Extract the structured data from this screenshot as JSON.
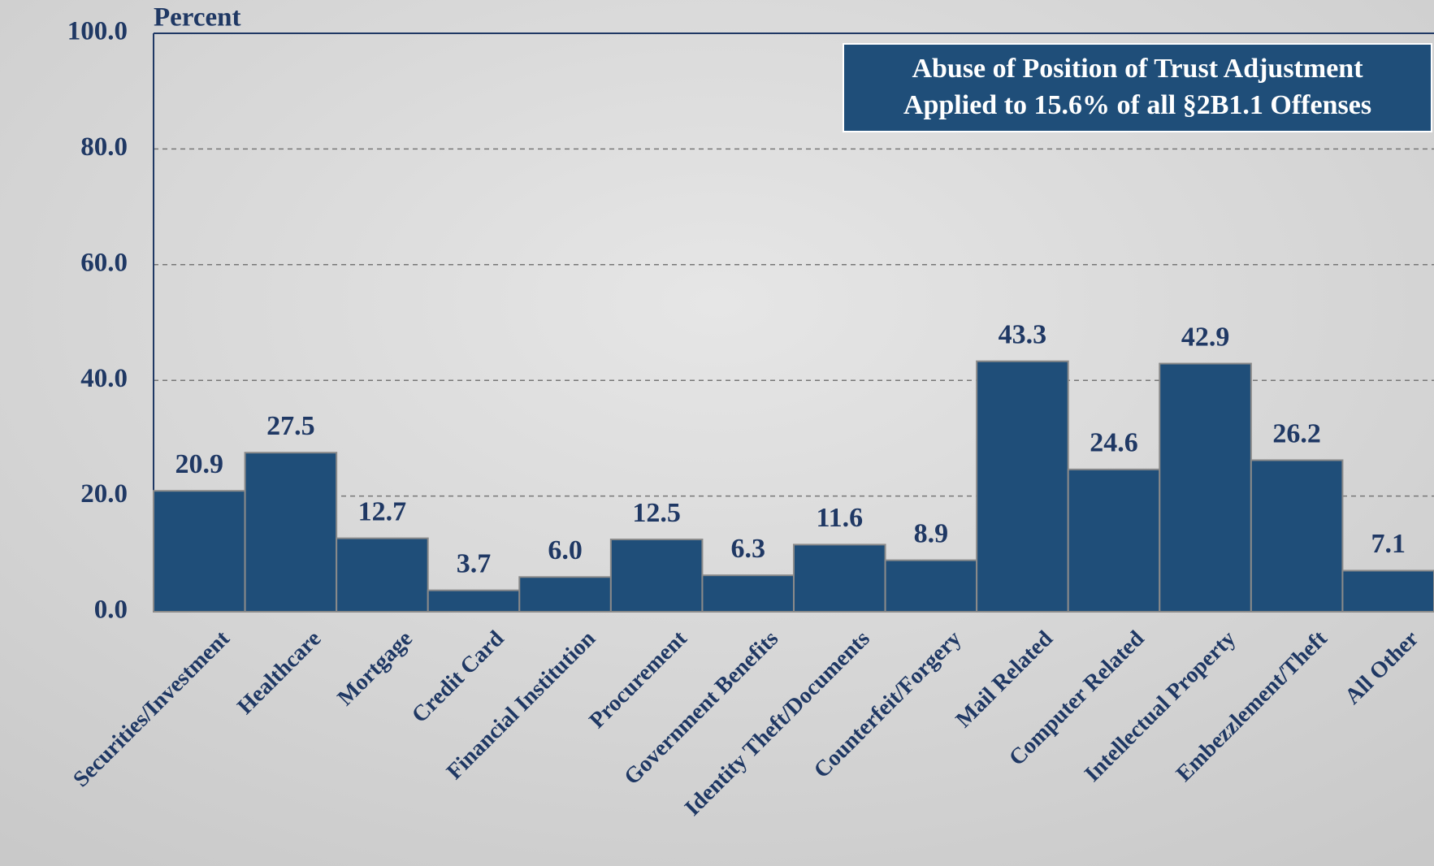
{
  "chart_data": {
    "type": "bar",
    "y_label": "Percent",
    "annotation": [
      "Abuse of Position of Trust Adjustment",
      "Applied to 15.6% of all §2B1.1 Offenses"
    ],
    "categories": [
      "Securities/Investment",
      "Healthcare",
      "Mortgage",
      "Credit Card",
      "Financial Institution",
      "Procurement",
      "Government Benefits",
      "Identity Theft/Documents",
      "Counterfeit/Forgery",
      "Mail Related",
      "Computer Related",
      "Intellectual Property",
      "Embezzlement/Theft",
      "All Other"
    ],
    "values": [
      20.9,
      27.5,
      12.7,
      3.7,
      6.0,
      12.5,
      6.3,
      11.6,
      8.9,
      43.3,
      24.6,
      42.9,
      26.2,
      7.1
    ],
    "value_labels": [
      "20.9",
      "27.5",
      "12.7",
      "3.7",
      "6.0",
      "12.5",
      "6.3",
      "11.6",
      "8.9",
      "43.3",
      "24.6",
      "42.9",
      "26.2",
      "7.1"
    ],
    "color": "#1f4e79",
    "ylim": [
      0,
      100
    ],
    "yticks": [
      {
        "value": 0,
        "label": "0.0"
      },
      {
        "value": 20,
        "label": "20.0"
      },
      {
        "value": 40,
        "label": "40.0"
      },
      {
        "value": 60,
        "label": "60.0"
      },
      {
        "value": 80,
        "label": "80.0"
      },
      {
        "value": 100,
        "label": "100.0"
      }
    ],
    "grid": true
  }
}
